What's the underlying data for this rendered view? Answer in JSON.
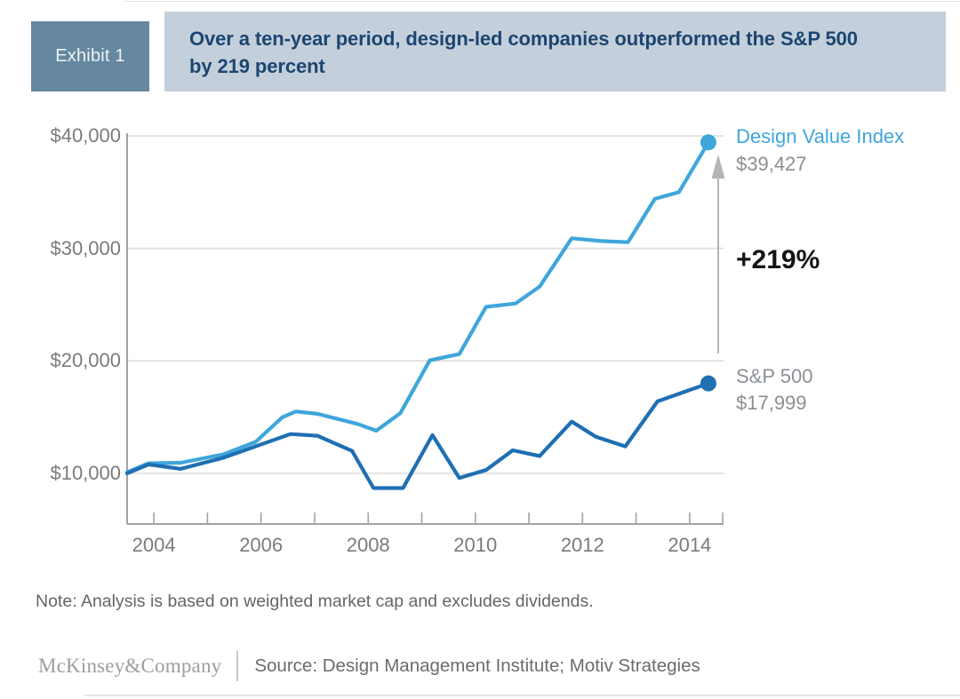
{
  "header": {
    "exhibit_label": "Exhibit 1",
    "title_line1": "Over a ten-year period, design-led companies outperformed the S&P 500",
    "title_line2": "by 219 percent"
  },
  "chart_data": {
    "type": "line",
    "title": "Over a ten-year period, design-led companies outperformed the S&P 500 by 219 percent",
    "x_axis": {
      "range": [
        2003.5,
        2014.6
      ],
      "tick_years": [
        2004,
        2005,
        2006,
        2007,
        2008,
        2009,
        2010,
        2011,
        2012,
        2013,
        2014
      ],
      "tick_labels": [
        {
          "year": 2004,
          "label": "2004"
        },
        {
          "year": 2006,
          "label": "2006"
        },
        {
          "year": 2008,
          "label": "2008"
        },
        {
          "year": 2010,
          "label": "2010"
        },
        {
          "year": 2012,
          "label": "2012"
        },
        {
          "year": 2014,
          "label": "2014"
        }
      ]
    },
    "y_axis": {
      "unit": "$",
      "range": [
        5500,
        41000
      ],
      "gridlines": true,
      "ticks": [
        {
          "value": 40000,
          "label": "$40,000"
        },
        {
          "value": 30000,
          "label": "$30,000"
        },
        {
          "value": 20000,
          "label": "$20,000"
        },
        {
          "value": 10000,
          "label": "$10,000"
        }
      ]
    },
    "legend_position": "right",
    "series": [
      {
        "name": "Design Value Index",
        "color": "#3FA6DB",
        "end_value": 39427,
        "end_value_label": "$39,427",
        "points": [
          [
            2003.5,
            10100
          ],
          [
            2003.9,
            10900
          ],
          [
            2004.5,
            10950
          ],
          [
            2005.3,
            11700
          ],
          [
            2005.9,
            12800
          ],
          [
            2006.4,
            15000
          ],
          [
            2006.65,
            15500
          ],
          [
            2007.05,
            15300
          ],
          [
            2007.8,
            14400
          ],
          [
            2008.15,
            13800
          ],
          [
            2008.6,
            15350
          ],
          [
            2009.15,
            20050
          ],
          [
            2009.7,
            20600
          ],
          [
            2010.2,
            24800
          ],
          [
            2010.75,
            25100
          ],
          [
            2011.2,
            26600
          ],
          [
            2011.8,
            30900
          ],
          [
            2012.35,
            30650
          ],
          [
            2012.85,
            30550
          ],
          [
            2013.35,
            34400
          ],
          [
            2013.8,
            35000
          ],
          [
            2014.35,
            39427
          ]
        ]
      },
      {
        "name": "S&P 500",
        "color": "#1F6FB2",
        "end_value": 17999,
        "end_value_label": "$17,999",
        "points": [
          [
            2003.5,
            10000
          ],
          [
            2003.9,
            10800
          ],
          [
            2004.5,
            10400
          ],
          [
            2005.3,
            11400
          ],
          [
            2006.55,
            13500
          ],
          [
            2007.05,
            13350
          ],
          [
            2007.7,
            12000
          ],
          [
            2008.1,
            8700
          ],
          [
            2008.65,
            8700
          ],
          [
            2009.2,
            13400
          ],
          [
            2009.7,
            9600
          ],
          [
            2010.2,
            10300
          ],
          [
            2010.7,
            12050
          ],
          [
            2011.2,
            11550
          ],
          [
            2011.8,
            14600
          ],
          [
            2012.25,
            13250
          ],
          [
            2012.8,
            12400
          ],
          [
            2013.4,
            16400
          ],
          [
            2014.35,
            17999
          ]
        ]
      }
    ],
    "annotation": {
      "delta_label": "+219%",
      "arrow_direction": "up"
    }
  },
  "annotations": {
    "dvi_label": "Design Value Index",
    "dvi_value": "$39,427",
    "delta": "+219%",
    "sp_label": "S&P 500",
    "sp_value": "$17,999"
  },
  "note": "Note: Analysis is based on weighted market cap and excludes dividends.",
  "footer": {
    "brand": "McKinsey&Company",
    "source": "Source: Design Management Institute; Motiv Strategies"
  },
  "colors": {
    "design_value_index": "#3FA6DB",
    "sp500": "#1F6FB2",
    "exhibit_box_bg": "#6687A0",
    "exhibit_box_text": "#EDF3F6",
    "title_band_bg": "#C3D0DB",
    "title_text": "#1D4570",
    "delta_text": "#151515",
    "axis_text": "#7B7B7B",
    "value_text": "#8E8E8E",
    "sp_label_text": "#8B9197",
    "note_text": "#656565",
    "brand_text": "#9D9D9D",
    "source_text": "#6C6C6C",
    "gridline": "#DBDBDB",
    "axis_line": "#A3A3A6",
    "arrow": "#B5B5B5"
  }
}
